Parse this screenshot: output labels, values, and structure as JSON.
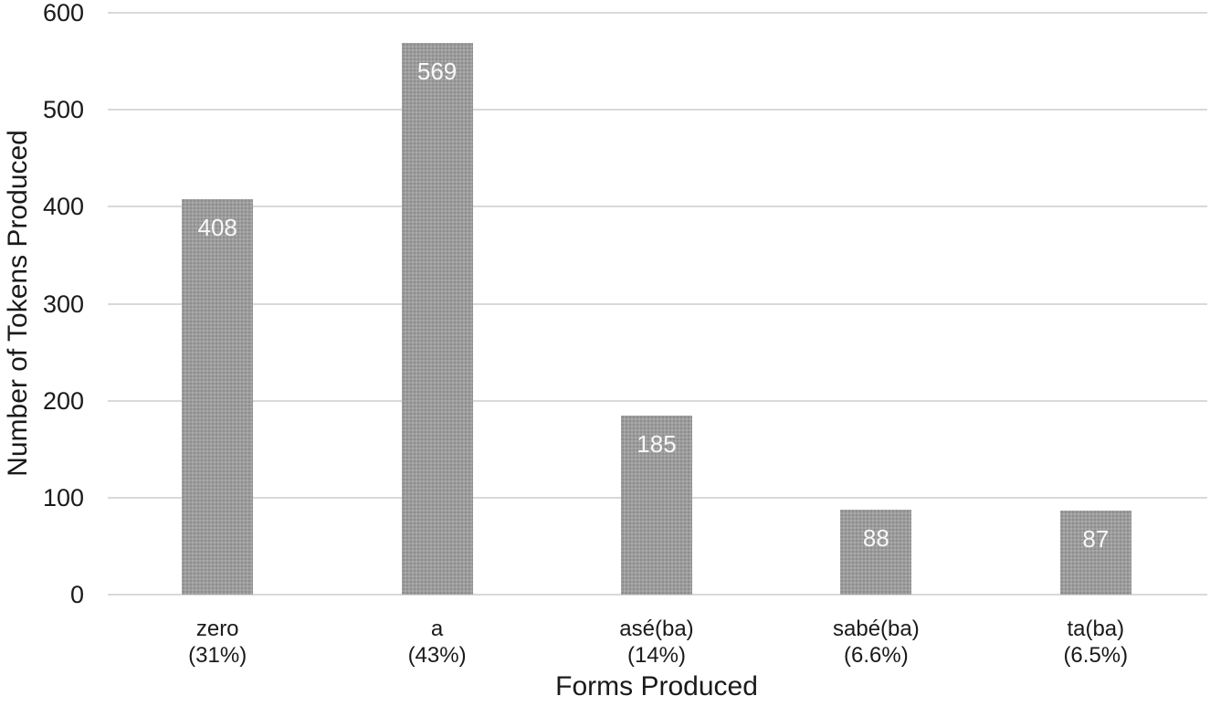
{
  "chart_data": {
    "type": "bar",
    "title": "",
    "xlabel": "Forms Produced",
    "ylabel": "Number of Tokens Produced",
    "categories": [
      "zero",
      "a",
      "asé(ba)",
      "sabé(ba)",
      "ta(ba)"
    ],
    "category_sublabels": [
      "(31%)",
      "(43%)",
      "(14%)",
      "(6.6%)",
      "(6.5%)"
    ],
    "values": [
      408,
      569,
      185,
      88,
      87
    ],
    "data_labels": [
      "408",
      "569",
      "185",
      "88",
      "87"
    ],
    "ylim": [
      0,
      600
    ],
    "yticks": [
      0,
      100,
      200,
      300,
      400,
      500,
      600
    ],
    "grid": "horizontal",
    "legend_position": "none",
    "colors": {
      "bar": "#9c9c9c",
      "bar_dot_dark": "#8c8c8c",
      "bar_dot_light": "#acacac",
      "bar_label": "#f8f8f8",
      "gridline": "#d9d9d9",
      "text": "#1a1a1a",
      "background": "#ffffff"
    }
  }
}
